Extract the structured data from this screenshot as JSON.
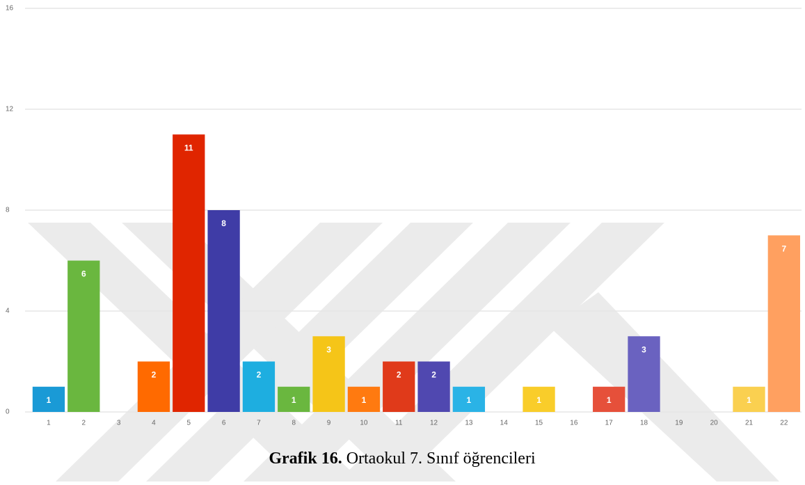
{
  "chart_data": {
    "type": "bar",
    "caption_label": "Grafik 16.",
    "caption_text": "Ortaokul 7. Sınıf öğrencileri",
    "categories": [
      "1",
      "2",
      "3",
      "4",
      "5",
      "6",
      "7",
      "8",
      "9",
      "10",
      "11",
      "12",
      "13",
      "14",
      "15",
      "16",
      "17",
      "18",
      "19",
      "20",
      "21",
      "22"
    ],
    "values": [
      1,
      6,
      0,
      2,
      11,
      8,
      2,
      1,
      3,
      1,
      2,
      2,
      1,
      0,
      1,
      0,
      1,
      3,
      0,
      0,
      1,
      7
    ],
    "colors": [
      "#1a9ad6",
      "#6ab73f",
      null,
      "#ff6a00",
      "#e02500",
      "#3f3ca6",
      "#1eaee0",
      "#6ab73f",
      "#f5c518",
      "#ff7a10",
      "#e03a1a",
      "#5048b0",
      "#2ab3e6",
      null,
      "#f9cd2a",
      null,
      "#e6503a",
      "#6a62c0",
      null,
      null,
      "#fad050",
      "#ffa060"
    ],
    "ylim": [
      0,
      16
    ],
    "yticks": [
      0,
      4,
      8,
      12,
      16
    ],
    "grid": true
  }
}
